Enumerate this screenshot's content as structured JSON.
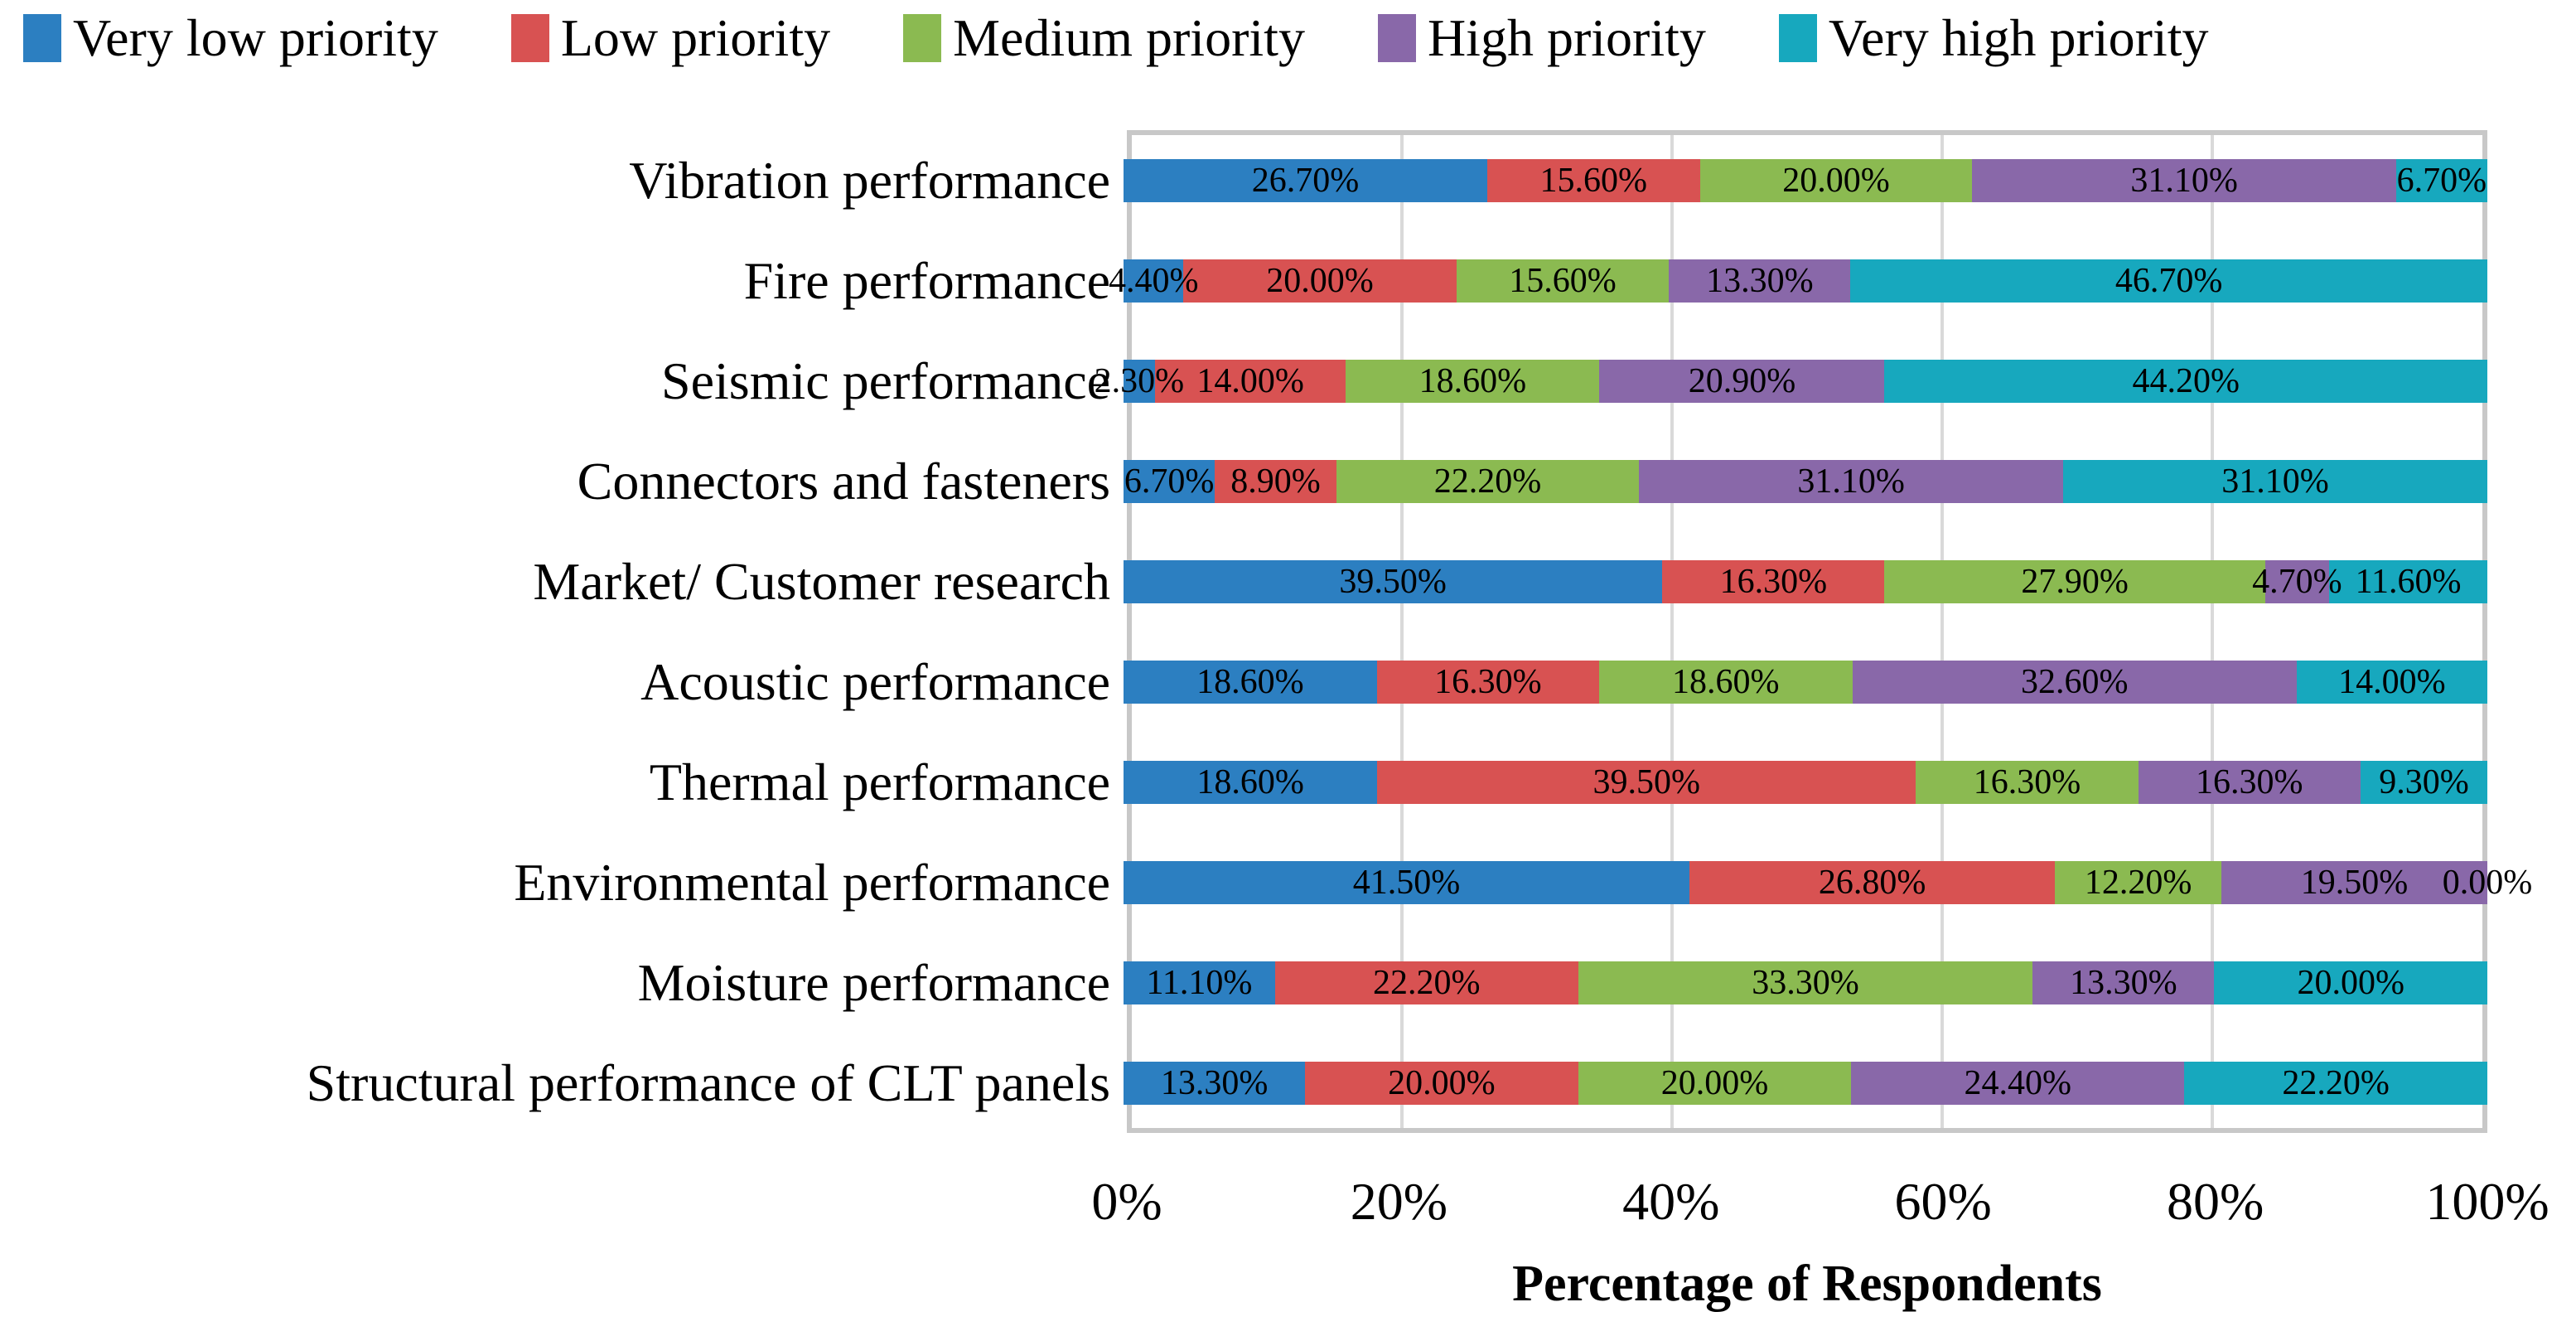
{
  "chart_data": {
    "type": "bar",
    "variant": "horizontal-stacked-100",
    "title": "",
    "xlabel": "Percentage of Respondents",
    "ylabel": "",
    "xlim": [
      0,
      100
    ],
    "x_ticks": [
      "0%",
      "20%",
      "40%",
      "60%",
      "80%",
      "100%"
    ],
    "gridline_percents": [
      20,
      40,
      60,
      80
    ],
    "grid": true,
    "legend_position": "top",
    "colors": {
      "very_low": "#2c7fc1",
      "low": "#d85252",
      "medium": "#8bba51",
      "high": "#8968a9",
      "very_high": "#17a8be",
      "gridline": "#d9d9d9",
      "frame": "#c8c8c8"
    },
    "categories": [
      "Vibration performance",
      "Fire performance",
      "Seismic performance",
      "Connectors and fasteners",
      "Market/ Customer research",
      "Acoustic performance",
      "Thermal performance",
      "Environmental performance",
      "Moisture performance",
      "Structural performance of CLT panels"
    ],
    "series": [
      {
        "name": "Very low priority",
        "color": "#2c7fc1",
        "values": [
          26.7,
          4.4,
          2.3,
          6.7,
          39.5,
          18.6,
          18.6,
          41.5,
          11.1,
          13.3
        ],
        "labels": [
          "26.70%",
          "4.40%",
          "2.30%",
          "6.70%",
          "39.50%",
          "18.60%",
          "18.60%",
          "41.50%",
          "11.10%",
          "13.30%"
        ]
      },
      {
        "name": "Low priority",
        "color": "#d85252",
        "values": [
          15.6,
          20.0,
          14.0,
          8.9,
          16.3,
          16.3,
          39.5,
          26.8,
          22.2,
          20.0
        ],
        "labels": [
          "15.60%",
          "20.00%",
          "14.00%",
          "8.90%",
          "16.30%",
          "16.30%",
          "39.50%",
          "26.80%",
          "22.20%",
          "20.00%"
        ]
      },
      {
        "name": "Medium priority",
        "color": "#8bba51",
        "values": [
          20.0,
          15.6,
          18.6,
          22.2,
          27.9,
          18.6,
          16.3,
          12.2,
          33.3,
          20.0
        ],
        "labels": [
          "20.00%",
          "15.60%",
          "18.60%",
          "22.20%",
          "27.90%",
          "18.60%",
          "16.30%",
          "12.20%",
          "33.30%",
          "20.00%"
        ]
      },
      {
        "name": "High priority",
        "color": "#8968a9",
        "values": [
          31.1,
          13.3,
          20.9,
          31.1,
          4.7,
          32.6,
          16.3,
          19.5,
          13.3,
          24.4
        ],
        "labels": [
          "31.10%",
          "13.30%",
          "20.90%",
          "31.10%",
          "4.70%",
          "32.60%",
          "16.30%",
          "19.50%",
          "13.30%",
          "24.40%"
        ]
      },
      {
        "name": "Very high priority",
        "color": "#17a8be",
        "values": [
          6.7,
          46.7,
          44.2,
          31.1,
          11.6,
          14.0,
          9.3,
          0.0,
          20.0,
          22.2
        ],
        "labels": [
          "6.70%",
          "46.70%",
          "44.20%",
          "31.10%",
          "11.60%",
          "14.00%",
          "9.30%",
          "0.00%",
          "20.00%",
          "22.20%"
        ]
      }
    ]
  }
}
